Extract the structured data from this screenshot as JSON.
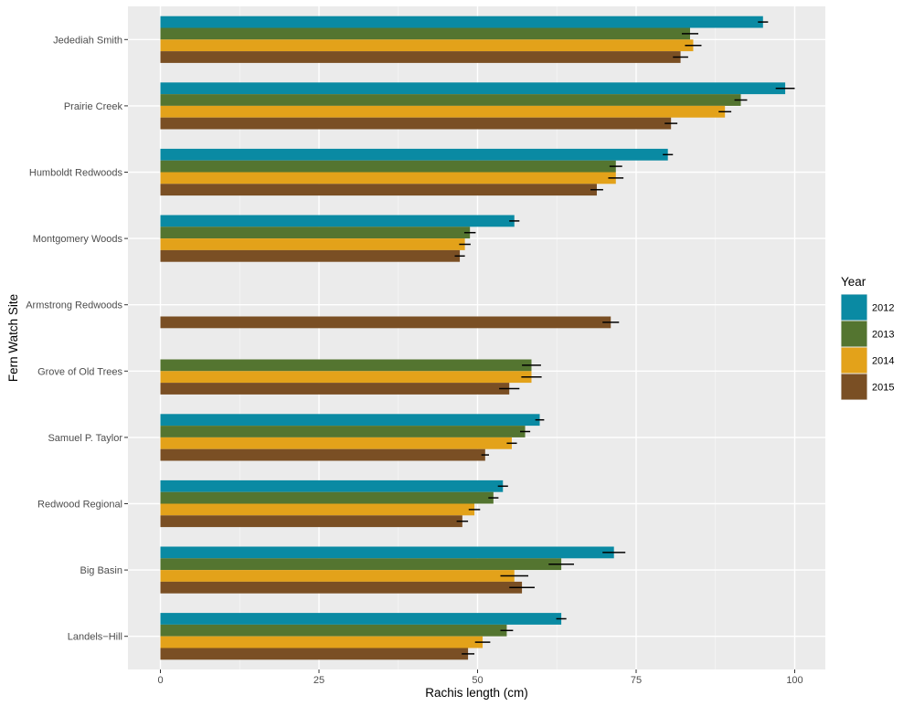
{
  "chart_data": {
    "type": "bar",
    "orientation": "horizontal",
    "title": "",
    "xlabel": "Rachis length (cm)",
    "ylabel": "Fern Watch Site",
    "xlim": [
      0,
      105
    ],
    "x_ticks": [
      0,
      25,
      50,
      75,
      100
    ],
    "grid": true,
    "legend": {
      "title": "Year",
      "position": "right"
    },
    "categories": [
      "Jedediah Smith",
      "Prairie Creek",
      "Humboldt Redwoods",
      "Montgomery Woods",
      "Armstrong Redwoods",
      "Grove of Old Trees",
      "Samuel P. Taylor",
      "Redwood Regional",
      "Big Basin",
      "Landels−Hill"
    ],
    "series": [
      {
        "name": "2012",
        "color": "#0a8aa3",
        "values": [
          95.0,
          98.5,
          80.0,
          55.8,
          null,
          null,
          59.8,
          54.0,
          71.5,
          63.2
        ],
        "errors": [
          0.8,
          1.5,
          0.8,
          0.8,
          null,
          null,
          0.7,
          0.8,
          1.8,
          0.8
        ]
      },
      {
        "name": "2013",
        "color": "#547530",
        "values": [
          83.5,
          91.5,
          71.8,
          48.8,
          null,
          58.5,
          57.5,
          52.5,
          63.2,
          54.6
        ],
        "errors": [
          1.3,
          1.0,
          1.0,
          0.9,
          null,
          1.5,
          0.8,
          0.8,
          2.0,
          1.0
        ]
      },
      {
        "name": "2014",
        "color": "#e3a21a",
        "values": [
          84.0,
          89.0,
          71.8,
          48.0,
          null,
          58.5,
          55.4,
          49.5,
          55.8,
          50.8
        ],
        "errors": [
          1.3,
          1.0,
          1.2,
          0.9,
          null,
          1.6,
          0.8,
          0.9,
          2.2,
          1.2
        ]
      },
      {
        "name": "2015",
        "color": "#7a4f24",
        "values": [
          82.0,
          80.5,
          68.8,
          47.2,
          71.0,
          55.0,
          51.2,
          47.6,
          57.0,
          48.5
        ],
        "errors": [
          1.2,
          1.0,
          1.0,
          0.8,
          1.3,
          1.6,
          0.6,
          0.9,
          2.0,
          1.0
        ]
      }
    ]
  }
}
